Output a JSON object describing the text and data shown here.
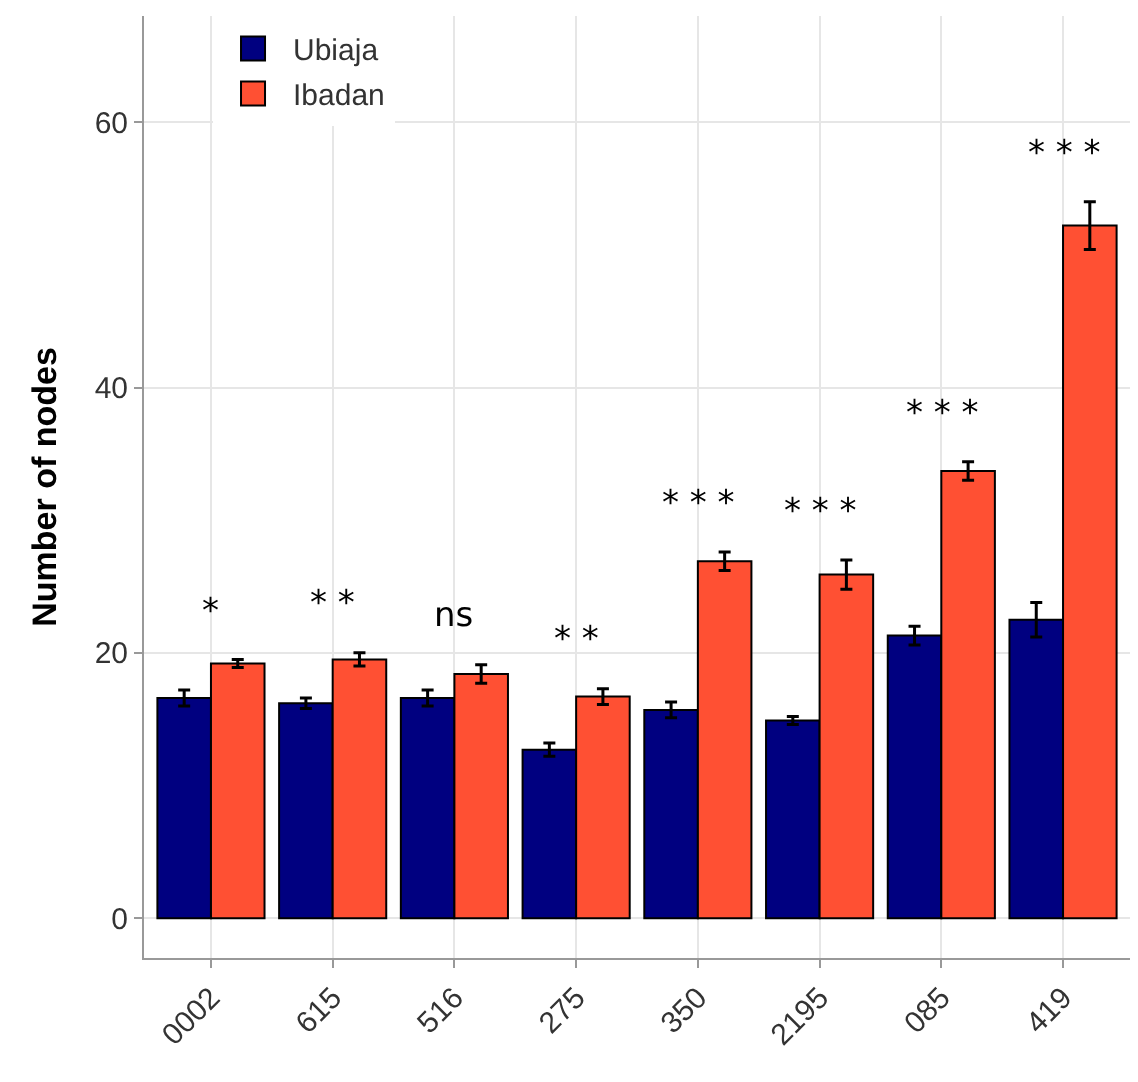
{
  "chart_data": {
    "type": "bar",
    "ylabel": "Number of nodes",
    "categories": [
      "0002",
      "615",
      "516",
      "275",
      "350",
      "2195",
      "085",
      "419"
    ],
    "series": [
      {
        "name": "Ubiaja",
        "color": "#000080",
        "values": [
          16.6,
          16.2,
          16.6,
          12.7,
          15.7,
          14.9,
          21.3,
          22.5
        ],
        "errors": [
          0.6,
          0.4,
          0.6,
          0.5,
          0.6,
          0.3,
          0.7,
          1.3
        ]
      },
      {
        "name": "Ibadan",
        "color": "#ff5033",
        "values": [
          19.2,
          19.5,
          18.4,
          16.7,
          26.9,
          25.9,
          33.7,
          52.2
        ],
        "errors": [
          0.3,
          0.5,
          0.7,
          0.6,
          0.7,
          1.1,
          0.7,
          1.8
        ]
      }
    ],
    "ylim": [
      -3,
      68
    ],
    "yticks": [
      0,
      20,
      40,
      60
    ],
    "grid": true,
    "legend": "top left",
    "annotations": [
      "*",
      "* *",
      "ns",
      "* *",
      "* * *",
      "* * *",
      "* * *",
      "* * *"
    ]
  }
}
